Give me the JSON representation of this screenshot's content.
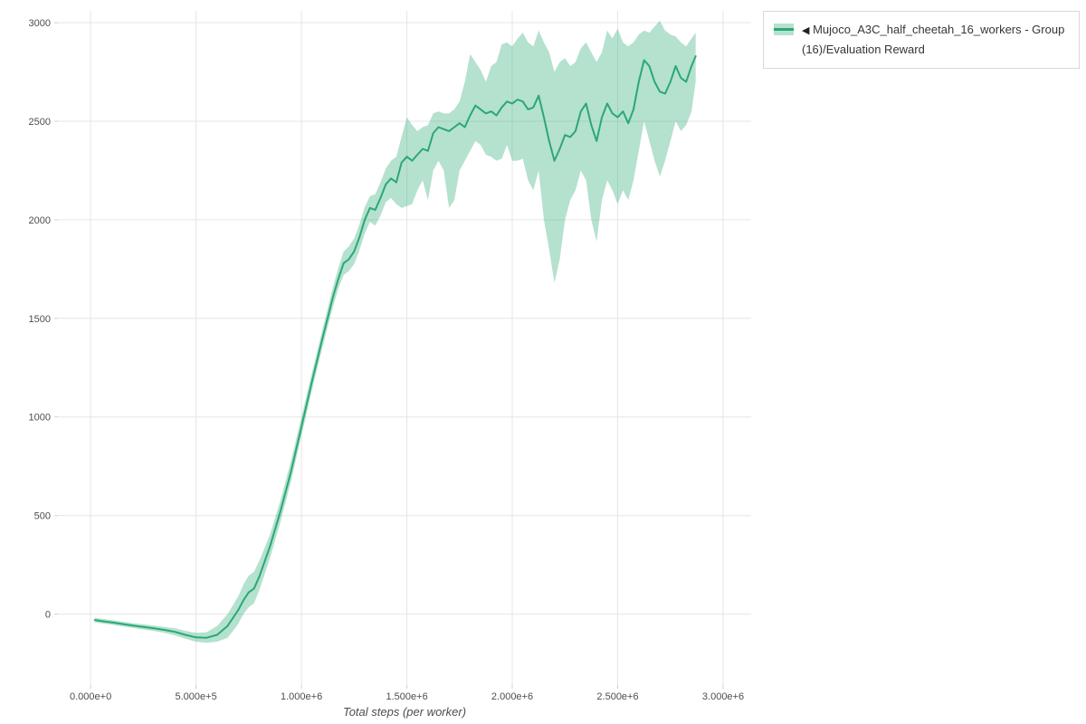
{
  "legend": {
    "collapse_icon": "◀",
    "label": "Mujoco_A3C_half_cheetah_16_workers - Group(16)/Evaluation Reward"
  },
  "chart_data": {
    "type": "line",
    "title": "",
    "xlabel": "Total steps (per worker)",
    "ylabel": "",
    "grid": true,
    "legend_position": "top-right",
    "xlim": [
      -155000,
      3133000
    ],
    "ylim": [
      -360,
      3060
    ],
    "x_ticks": [
      {
        "value": 0,
        "label": "0.000e+0"
      },
      {
        "value": 500000,
        "label": "5.000e+5"
      },
      {
        "value": 1000000,
        "label": "1.000e+6"
      },
      {
        "value": 1500000,
        "label": "1.500e+6"
      },
      {
        "value": 2000000,
        "label": "2.000e+6"
      },
      {
        "value": 2500000,
        "label": "2.500e+6"
      },
      {
        "value": 3000000,
        "label": "3.000e+6"
      }
    ],
    "y_ticks": [
      {
        "value": 0,
        "label": "0"
      },
      {
        "value": 500,
        "label": "500"
      },
      {
        "value": 1000,
        "label": "1000"
      },
      {
        "value": 1500,
        "label": "1500"
      },
      {
        "value": 2000,
        "label": "2000"
      },
      {
        "value": 2500,
        "label": "2500"
      },
      {
        "value": 3000,
        "label": "3000"
      }
    ],
    "colors": {
      "line": "#2aa876",
      "band": "#2aa876",
      "band_opacity": 0.35
    },
    "series": [
      {
        "name": "Mujoco_A3C_half_cheetah_16_workers - Group(16)/Evaluation Reward",
        "x": [
          20000,
          50000,
          100000,
          150000,
          200000,
          250000,
          300000,
          350000,
          400000,
          450000,
          500000,
          550000,
          600000,
          650000,
          700000,
          725000,
          750000,
          775000,
          800000,
          850000,
          900000,
          950000,
          1000000,
          1050000,
          1100000,
          1150000,
          1175000,
          1200000,
          1225000,
          1250000,
          1275000,
          1300000,
          1325000,
          1350000,
          1375000,
          1400000,
          1425000,
          1450000,
          1475000,
          1500000,
          1525000,
          1550000,
          1575000,
          1600000,
          1625000,
          1650000,
          1675000,
          1700000,
          1725000,
          1750000,
          1775000,
          1800000,
          1825000,
          1850000,
          1875000,
          1900000,
          1925000,
          1950000,
          1975000,
          2000000,
          2025000,
          2050000,
          2075000,
          2100000,
          2125000,
          2150000,
          2175000,
          2200000,
          2225000,
          2250000,
          2275000,
          2300000,
          2325000,
          2350000,
          2375000,
          2400000,
          2425000,
          2450000,
          2475000,
          2500000,
          2525000,
          2550000,
          2575000,
          2600000,
          2625000,
          2650000,
          2675000,
          2700000,
          2725000,
          2750000,
          2775000,
          2800000,
          2825000,
          2850000,
          2870000
        ],
        "mean": [
          -30,
          -35,
          -42,
          -50,
          -58,
          -65,
          -72,
          -80,
          -90,
          -105,
          -118,
          -120,
          -105,
          -60,
          20,
          70,
          110,
          130,
          190,
          340,
          520,
          720,
          950,
          1180,
          1400,
          1610,
          1700,
          1780,
          1800,
          1840,
          1910,
          2000,
          2060,
          2050,
          2110,
          2180,
          2210,
          2190,
          2290,
          2320,
          2300,
          2330,
          2360,
          2350,
          2440,
          2470,
          2460,
          2450,
          2470,
          2490,
          2470,
          2530,
          2580,
          2560,
          2540,
          2550,
          2530,
          2570,
          2600,
          2590,
          2610,
          2600,
          2560,
          2570,
          2630,
          2520,
          2400,
          2300,
          2360,
          2430,
          2420,
          2450,
          2550,
          2590,
          2480,
          2400,
          2520,
          2590,
          2540,
          2520,
          2550,
          2490,
          2560,
          2700,
          2810,
          2780,
          2700,
          2650,
          2640,
          2700,
          2780,
          2720,
          2700,
          2780,
          2830
        ],
        "lower": [
          -42,
          -47,
          -54,
          -62,
          -70,
          -78,
          -86,
          -95,
          -108,
          -125,
          -140,
          -145,
          -140,
          -120,
          -50,
          0,
          35,
          55,
          120,
          280,
          465,
          670,
          905,
          1135,
          1355,
          1560,
          1650,
          1720,
          1740,
          1775,
          1845,
          1930,
          1990,
          1970,
          2020,
          2090,
          2110,
          2080,
          2060,
          2070,
          2080,
          2150,
          2200,
          2100,
          2250,
          2300,
          2250,
          2060,
          2100,
          2250,
          2300,
          2350,
          2400,
          2380,
          2330,
          2320,
          2300,
          2310,
          2380,
          2300,
          2300,
          2310,
          2200,
          2150,
          2250,
          2000,
          1850,
          1680,
          1800,
          2000,
          2100,
          2150,
          2250,
          2200,
          2000,
          1890,
          2100,
          2200,
          2150,
          2080,
          2150,
          2100,
          2200,
          2350,
          2500,
          2400,
          2300,
          2220,
          2300,
          2400,
          2500,
          2450,
          2480,
          2550,
          2700
        ],
        "upper": [
          -18,
          -23,
          -30,
          -38,
          -46,
          -52,
          -58,
          -65,
          -72,
          -85,
          -95,
          -92,
          -60,
          0,
          90,
          150,
          195,
          215,
          270,
          400,
          575,
          775,
          1000,
          1225,
          1445,
          1660,
          1755,
          1840,
          1865,
          1905,
          1975,
          2065,
          2120,
          2130,
          2190,
          2260,
          2300,
          2320,
          2420,
          2520,
          2480,
          2450,
          2470,
          2480,
          2540,
          2550,
          2540,
          2540,
          2560,
          2600,
          2700,
          2840,
          2800,
          2760,
          2700,
          2780,
          2800,
          2890,
          2900,
          2880,
          2920,
          2950,
          2900,
          2880,
          2960,
          2900,
          2850,
          2750,
          2800,
          2820,
          2780,
          2800,
          2870,
          2900,
          2850,
          2800,
          2850,
          2960,
          2920,
          2970,
          2900,
          2880,
          2900,
          2940,
          2960,
          2950,
          2980,
          3010,
          2960,
          2940,
          2930,
          2900,
          2880,
          2920,
          2950
        ]
      }
    ]
  }
}
